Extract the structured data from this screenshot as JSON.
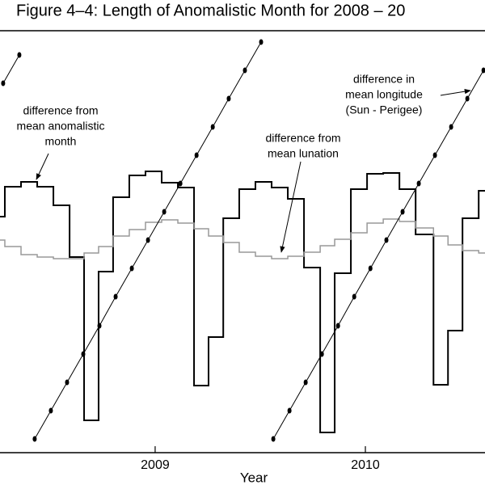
{
  "chart_data": {
    "type": "line",
    "title": "Figure 4–4: Length of  Anomalistic Month for 2008 – 20",
    "x_label": "Year",
    "xlim": [
      2008.262,
      2010.569
    ],
    "xticks": [
      2009,
      2010
    ],
    "ylim": [
      0,
      522
    ],
    "series": [
      {
        "color": "#000000",
        "step": true,
        "x": [
          2008.262,
          2008.285,
          2008.362,
          2008.439,
          2008.516,
          2008.593,
          2008.662,
          2008.731,
          2008.8,
          2008.877,
          2008.954,
          2009.031,
          2009.108,
          2009.185,
          2009.254,
          2009.324,
          2009.4,
          2009.477,
          2009.554,
          2009.631,
          2009.708,
          2009.785,
          2009.854,
          2009.931,
          2010.008,
          2010.085,
          2010.162,
          2010.239,
          2010.324,
          2010.393,
          2010.462,
          2010.539
        ],
        "values": [
          292,
          329,
          335,
          329,
          306,
          242,
          40,
          224,
          316,
          343,
          348,
          334,
          328,
          83,
          143,
          290,
          326,
          335,
          328,
          314,
          229,
          25,
          222,
          326,
          345,
          346,
          326,
          270,
          84,
          151,
          290,
          324
        ]
      },
      {
        "color": "#999999",
        "step": true,
        "x": [
          2008.262,
          2008.285,
          2008.362,
          2008.439,
          2008.516,
          2008.593,
          2008.662,
          2008.731,
          2008.8,
          2008.877,
          2008.954,
          2009.031,
          2009.108,
          2009.185,
          2009.254,
          2009.324,
          2009.4,
          2009.477,
          2009.554,
          2009.631,
          2009.708,
          2009.785,
          2009.854,
          2009.931,
          2010.008,
          2010.085,
          2010.162,
          2010.239,
          2010.324,
          2010.393,
          2010.462,
          2010.539
        ],
        "values": [
          263,
          255,
          245,
          242,
          240,
          240,
          247,
          255,
          268,
          276,
          285,
          288,
          284,
          277,
          268,
          260,
          248,
          243,
          240,
          243,
          248,
          256,
          264,
          272,
          284,
          289,
          286,
          278,
          268,
          257,
          250,
          247
        ]
      },
      {
        "color": "#000000",
        "step": false,
        "markers": true,
        "x": [
          2008.277,
          2008.354,
          null,
          2008.427,
          2008.504,
          2008.581,
          2008.658,
          2008.735,
          2008.812,
          2008.889,
          2008.966,
          2009.043,
          2009.12,
          2009.197,
          2009.274,
          2009.35,
          2009.427,
          2009.504,
          null,
          2009.562,
          2009.639,
          2009.716,
          2009.793,
          2009.87,
          2009.947,
          2010.024,
          2010.1,
          2010.177,
          2010.254,
          2010.331,
          2010.408,
          2010.485,
          2010.562
        ],
        "values": [
          457,
          492,
          null,
          17,
          52,
          87,
          122,
          157,
          193,
          228,
          263,
          298,
          333,
          368,
          403,
          438,
          473,
          508,
          null,
          17,
          52,
          87,
          122,
          157,
          193,
          228,
          263,
          298,
          333,
          368,
          403,
          438,
          473
        ]
      }
    ],
    "annotations": [
      {
        "lines": [
          "difference from",
          "mean anomalistic",
          "month"
        ]
      },
      {
        "lines": [
          "difference from",
          "mean lunation"
        ]
      },
      {
        "lines": [
          "difference in",
          "mean longitude",
          "(Sun - Perigee)"
        ]
      }
    ]
  }
}
